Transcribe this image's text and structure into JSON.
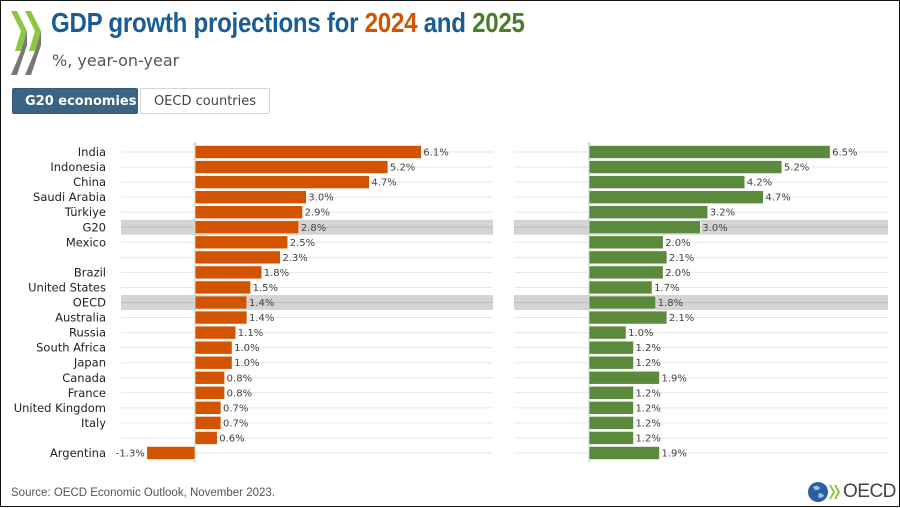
{
  "header": {
    "title_prefix": "GDP growth projections for ",
    "title_year1": "2024",
    "title_mid": " and ",
    "title_year2": "2025",
    "subtitle": "%, year-on-year"
  },
  "tabs": [
    {
      "label": "G20 economies",
      "active": true
    },
    {
      "label": "OECD countries",
      "active": false
    }
  ],
  "colors": {
    "title": "#1b5c93",
    "series_2024": "#d35400",
    "series_2025": "#5b8a3c",
    "highlight_row": "#d4d4d4",
    "tab_active": "#3b6384"
  },
  "footer": {
    "source": "Source: OECD Economic Outlook, November 2023.",
    "logo_text": "OECD"
  },
  "chart_data": [
    {
      "type": "bar",
      "orientation": "horizontal",
      "title": "2024",
      "categories": [
        "India",
        "Indonesia",
        "China",
        "Saudi Arabia",
        "Türkiye",
        "G20",
        "Mexico",
        "",
        "Brazil",
        "United States",
        "OECD",
        "Australia",
        "Russia",
        "South Africa",
        "Japan",
        "Canada",
        "France",
        "United Kingdom",
        "Italy",
        "",
        "Argentina"
      ],
      "highlighted": [
        "G20",
        "OECD"
      ],
      "values": [
        6.1,
        5.2,
        4.7,
        3.0,
        2.9,
        2.8,
        2.5,
        2.3,
        1.8,
        1.5,
        1.4,
        1.4,
        1.1,
        1.0,
        1.0,
        0.8,
        0.8,
        0.7,
        0.7,
        0.6,
        -1.3
      ],
      "labels": [
        "6.1%",
        "5.2%",
        "4.7%",
        "3.0%",
        "2.9%",
        "2.8%",
        "2.5%",
        "2.3%",
        "1.8%",
        "1.5%",
        "1.4%",
        "1.4%",
        "1.1%",
        "1.0%",
        "1.0%",
        "0.8%",
        "0.8%",
        "0.7%",
        "0.7%",
        "0.6%",
        "-1.3%"
      ],
      "xlim": [
        -2,
        8
      ],
      "grid": true
    },
    {
      "type": "bar",
      "orientation": "horizontal",
      "title": "2025",
      "categories": [
        "India",
        "Indonesia",
        "China",
        "Saudi Arabia",
        "Türkiye",
        "G20",
        "Mexico",
        "",
        "Brazil",
        "United States",
        "OECD",
        "Australia",
        "Russia",
        "South Africa",
        "Japan",
        "Canada",
        "France",
        "United Kingdom",
        "Italy",
        "",
        "Argentina"
      ],
      "highlighted": [
        "G20",
        "OECD"
      ],
      "values": [
        6.5,
        5.2,
        4.2,
        4.7,
        3.2,
        3.0,
        2.0,
        2.1,
        2.0,
        1.7,
        1.8,
        2.1,
        1.0,
        1.2,
        1.2,
        1.9,
        1.2,
        1.2,
        1.2,
        1.2,
        1.9
      ],
      "labels": [
        "6.5%",
        "5.2%",
        "4.2%",
        "4.7%",
        "3.2%",
        "3.0%",
        "2.0%",
        "2.1%",
        "2.0%",
        "1.7%",
        "1.8%",
        "2.1%",
        "1.0%",
        "1.2%",
        "1.2%",
        "1.9%",
        "1.2%",
        "1.2%",
        "1.2%",
        "1.2%",
        "1.9%"
      ],
      "xlim": [
        -2,
        8
      ],
      "grid": true
    }
  ]
}
